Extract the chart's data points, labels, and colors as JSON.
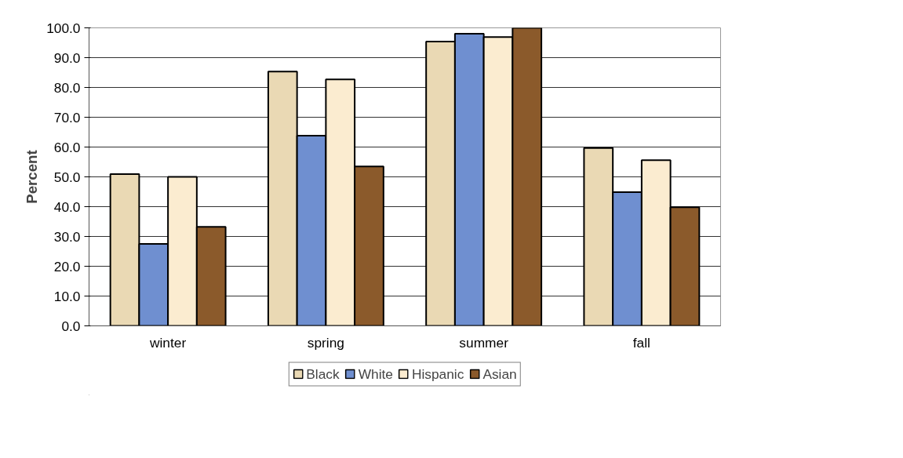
{
  "chart_data": {
    "type": "bar",
    "ylabel": "Percent",
    "categories": [
      "winter",
      "spring",
      "summer",
      "fall"
    ],
    "series": [
      {
        "name": "Black",
        "color": "#ead9b4",
        "values": [
          50.9,
          85.3,
          95.4,
          59.7
        ]
      },
      {
        "name": "White",
        "color": "#6f8fd0",
        "values": [
          27.5,
          63.8,
          98.0,
          44.9
        ]
      },
      {
        "name": "Hispanic",
        "color": "#fbecd0",
        "values": [
          50.0,
          82.7,
          96.9,
          55.6
        ]
      },
      {
        "name": "Asian",
        "color": "#8b5a2b",
        "values": [
          33.2,
          53.5,
          100.0,
          39.8
        ]
      }
    ],
    "ylim": [
      0,
      100
    ],
    "yticks": [
      {
        "value": 0,
        "label": "0.0"
      },
      {
        "value": 10,
        "label": "10.0"
      },
      {
        "value": 20,
        "label": "20.0"
      },
      {
        "value": 30,
        "label": "30.0"
      },
      {
        "value": 40,
        "label": "40.0"
      },
      {
        "value": 50,
        "label": "50.0"
      },
      {
        "value": 60,
        "label": "60.0"
      },
      {
        "value": 70,
        "label": "70.0"
      },
      {
        "value": 80,
        "label": "80.0"
      },
      {
        "value": 90,
        "label": "90.0"
      },
      {
        "value": 100,
        "label": "100.0"
      }
    ],
    "grid": "y",
    "legend": "bottom"
  }
}
